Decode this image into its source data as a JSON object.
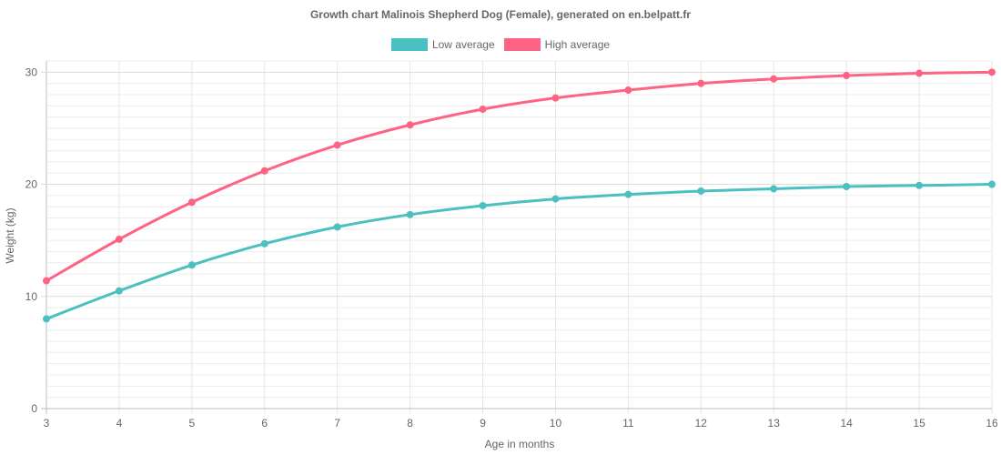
{
  "chart_data": {
    "type": "line",
    "title": "Growth chart Malinois Shepherd Dog (Female), generated on en.belpatt.fr",
    "xlabel": "Age in months",
    "ylabel": "Weight (kg)",
    "x": [
      3,
      4,
      5,
      6,
      7,
      8,
      9,
      10,
      11,
      12,
      13,
      14,
      15,
      16
    ],
    "xlim": [
      3,
      16
    ],
    "ylim": [
      0,
      31
    ],
    "yticks": [
      0,
      10,
      20,
      30
    ],
    "grid": true,
    "legend_position": "top-center",
    "series": [
      {
        "name": "Low average",
        "color": "#4bc0c0",
        "values": [
          8.0,
          10.5,
          12.8,
          14.7,
          16.2,
          17.3,
          18.1,
          18.7,
          19.1,
          19.4,
          19.6,
          19.8,
          19.9,
          20.0
        ]
      },
      {
        "name": "High average",
        "color": "#ff6384",
        "values": [
          11.4,
          15.1,
          18.4,
          21.2,
          23.5,
          25.3,
          26.7,
          27.7,
          28.4,
          29.0,
          29.4,
          29.7,
          29.9,
          30.0
        ]
      }
    ]
  }
}
